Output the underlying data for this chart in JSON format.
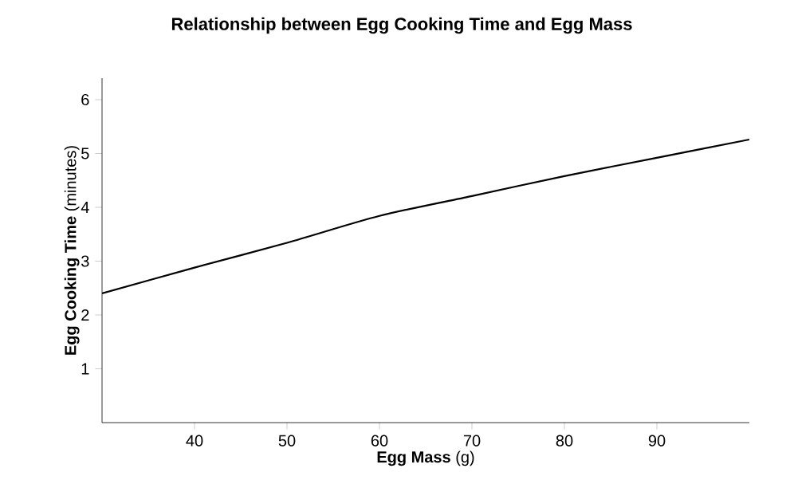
{
  "chart_data": {
    "type": "line",
    "title": "Relationship between Egg Cooking Time and Egg Mass",
    "xlabel": "**Egg Mass** (g)",
    "ylabel": "**Egg Cooking Time** (minutes)",
    "x": [
      30,
      40,
      50,
      60,
      70,
      80,
      90,
      100
    ],
    "series": [
      {
        "color": "#000000",
        "values": [
          2.4,
          2.88,
          3.34,
          3.84,
          4.21,
          4.58,
          4.92,
          5.26
        ]
      }
    ],
    "xlim": [
      30,
      100
    ],
    "ylim": [
      0,
      6.4
    ],
    "xticks": [
      40,
      50,
      60,
      70,
      80,
      90
    ],
    "yticks": [
      1,
      2,
      3,
      4,
      5,
      6
    ],
    "grid": false,
    "marker": "none",
    "line_style": "solid"
  }
}
